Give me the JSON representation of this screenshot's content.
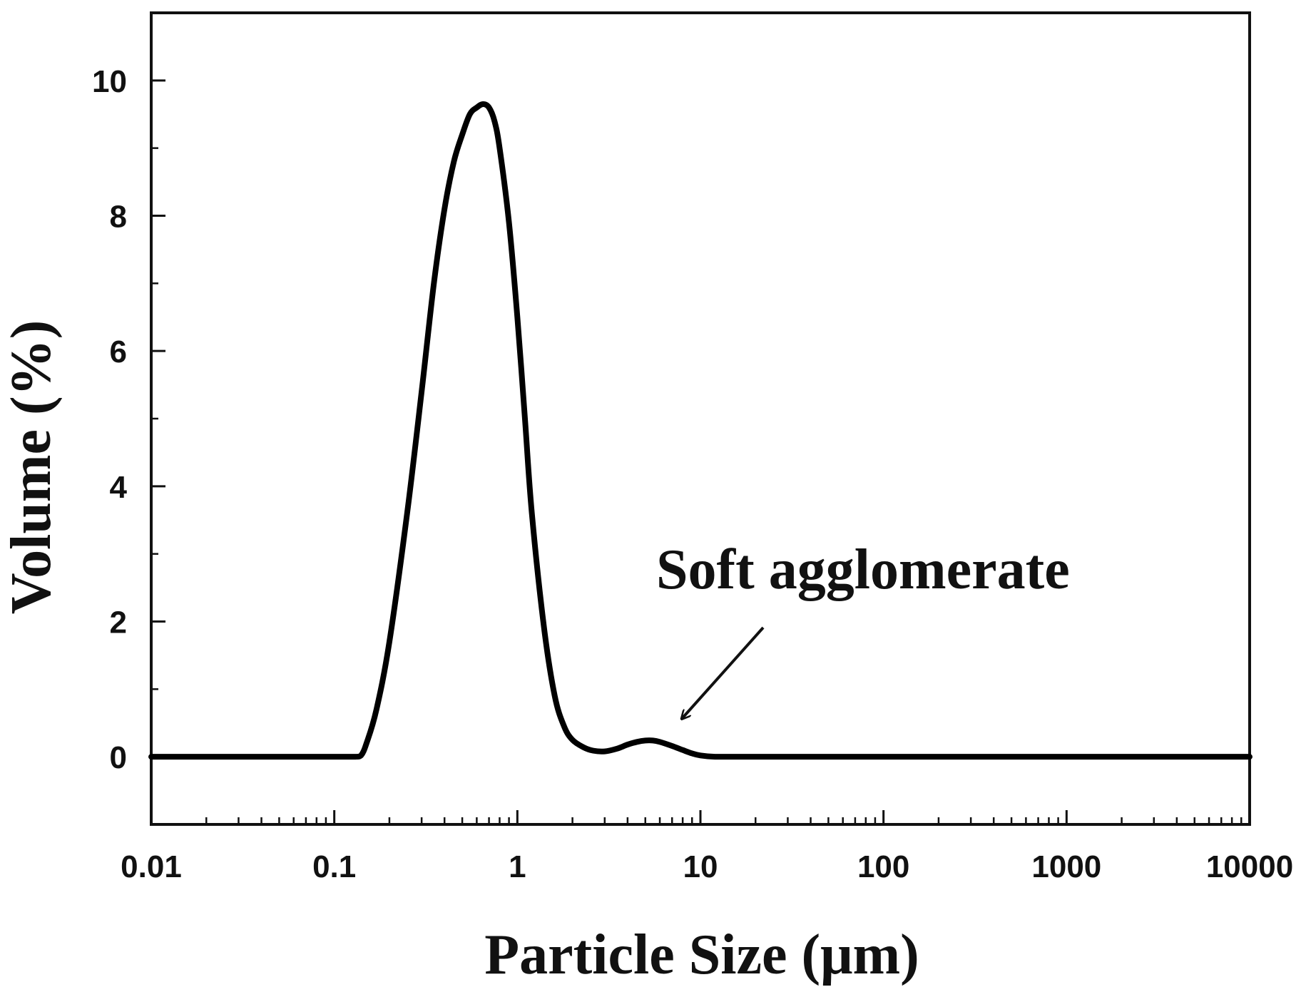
{
  "chart_data": {
    "type": "line",
    "title": "",
    "xlabel": "Particle Size (μm)",
    "ylabel": "Volume (%)",
    "xscale": "log",
    "xlim": [
      0.01,
      10000
    ],
    "ylim": [
      -1,
      11
    ],
    "xticks": [
      {
        "value": 0.01,
        "label": "0.01"
      },
      {
        "value": 0.1,
        "label": "0.1"
      },
      {
        "value": 1,
        "label": "1"
      },
      {
        "value": 10,
        "label": "10"
      },
      {
        "value": 100,
        "label": "100"
      },
      {
        "value": 1000,
        "label": "1000"
      },
      {
        "value": 10000,
        "label": "10000"
      }
    ],
    "yticks": [
      {
        "value": 0,
        "label": "0"
      },
      {
        "value": 2,
        "label": "2"
      },
      {
        "value": 4,
        "label": "4"
      },
      {
        "value": 6,
        "label": "6"
      },
      {
        "value": 8,
        "label": "8"
      },
      {
        "value": 10,
        "label": "10"
      }
    ],
    "grid": false,
    "line_color": "#000000",
    "series": [
      {
        "x": [
          0.01,
          0.05,
          0.1,
          0.13,
          0.14,
          0.15,
          0.17,
          0.2,
          0.25,
          0.3,
          0.35,
          0.4,
          0.45,
          0.5,
          0.55,
          0.6,
          0.65,
          0.7,
          0.75,
          0.8,
          0.9,
          1.0,
          1.1,
          1.2,
          1.4,
          1.6,
          1.8,
          2.0,
          2.3,
          2.6,
          3.0,
          3.5,
          4.0,
          4.5,
          5.0,
          5.5,
          6.0,
          7.0,
          8.0,
          9.0,
          10,
          12,
          15,
          100,
          1000,
          10000
        ],
        "y": [
          0,
          0,
          0,
          0,
          0.02,
          0.2,
          0.7,
          1.7,
          3.6,
          5.4,
          7.0,
          8.1,
          8.8,
          9.2,
          9.5,
          9.6,
          9.65,
          9.6,
          9.4,
          9.0,
          7.9,
          6.5,
          5.0,
          3.6,
          1.9,
          0.9,
          0.45,
          0.25,
          0.14,
          0.09,
          0.08,
          0.12,
          0.18,
          0.22,
          0.24,
          0.24,
          0.22,
          0.16,
          0.1,
          0.05,
          0.02,
          0,
          0,
          0,
          0,
          0
        ]
      }
    ],
    "annotations": [
      {
        "text": "Soft agglomerate",
        "arrow_to": {
          "x": 7.5,
          "y": 0.5
        }
      }
    ]
  }
}
